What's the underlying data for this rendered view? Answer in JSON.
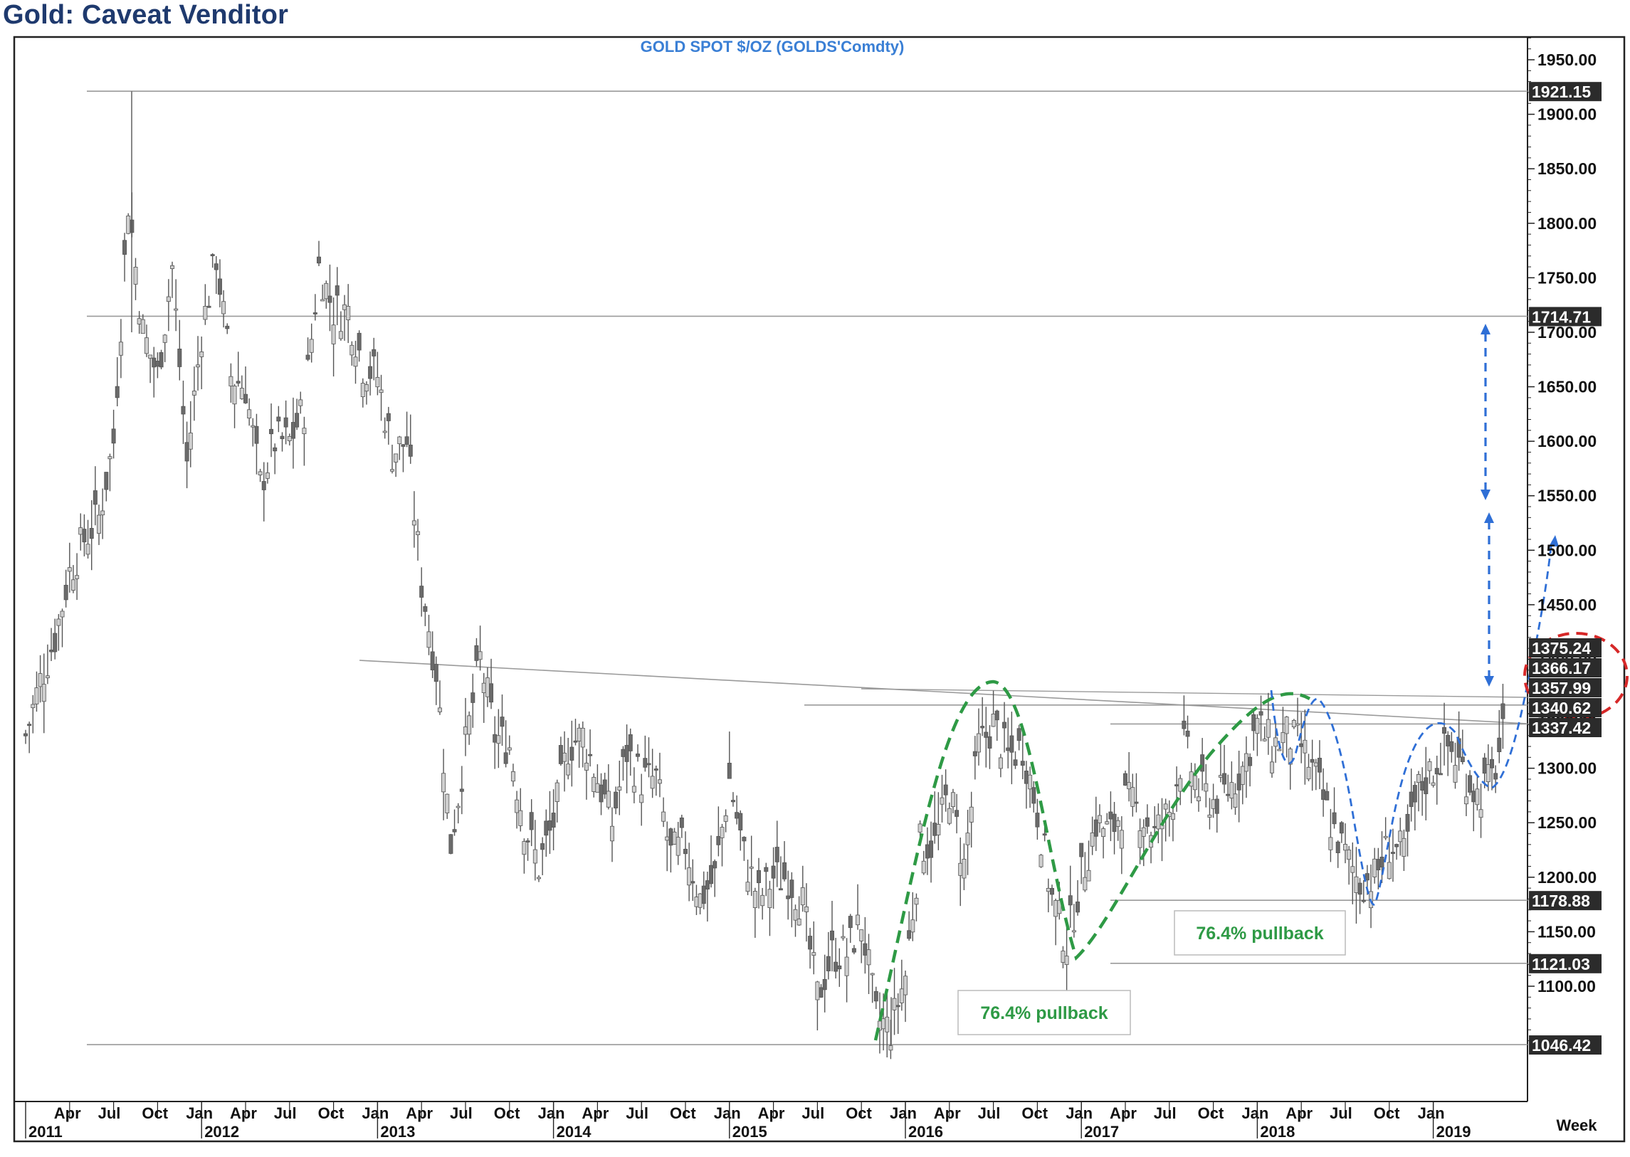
{
  "page": {
    "title": "Gold: Caveat Venditor"
  },
  "colors": {
    "title": "#1f3a6e",
    "chart_title": "#3a7fd5",
    "candles": "#555555",
    "green_wave": "#2e9a45",
    "blue_wave": "#2f6fd6",
    "red_circle": "#d62828",
    "label_box": "#2b2b2b",
    "axis_line": "#222222",
    "level_line": "#9a9a9a"
  },
  "chart_data": {
    "type": "candlestick",
    "title": "GOLD  SPOT  $/OZ  (GOLDS'Comdty)",
    "interval_label": "Week",
    "ylim": [
      1020,
      1980
    ],
    "y_ticks": [
      1100,
      1150,
      1200,
      1250,
      1300,
      1350,
      1400,
      1450,
      1500,
      1550,
      1600,
      1650,
      1700,
      1750,
      1800,
      1850,
      1900,
      1950
    ],
    "y_tick_labels": [
      "1100.00",
      "1150.00",
      "1200.00",
      "1250.00",
      "1300.00",
      "1350.00",
      "1400.00",
      "1450.00",
      "1500.00",
      "1550.00",
      "1600.00",
      "1650.00",
      "1700.00",
      "1750.00",
      "1800.00",
      "1850.00",
      "1900.00",
      "1950.00"
    ],
    "level_labels": [
      "1921.15",
      "1714.71",
      "1375.24",
      "1366.17",
      "1357.99",
      "1340.62",
      "1337.42",
      "1178.88",
      "1121.03",
      "1046.42"
    ],
    "x_month_labels": [
      "Apr",
      "Jul",
      "Oct",
      "Jan",
      "Apr",
      "Jul",
      "Oct",
      "Jan",
      "Apr",
      "Jul",
      "Oct",
      "Jan",
      "Apr",
      "Jul",
      "Oct",
      "Jan",
      "Apr",
      "Jul",
      "Oct",
      "Jan",
      "Apr",
      "Jul",
      "Oct",
      "Jan",
      "Apr",
      "Jul",
      "Oct",
      "Jan",
      "Apr",
      "Jul",
      "Oct",
      "Jan"
    ],
    "x_year_labels": [
      "2011",
      "2012",
      "2013",
      "2014",
      "2015",
      "2016",
      "2017",
      "2018",
      "2019"
    ],
    "x_range": [
      "2011-01",
      "2019-06"
    ],
    "horizontal_levels": [
      1921.15,
      1714.71,
      1357.99,
      1340.62,
      1178.88,
      1121.03,
      1046.42
    ],
    "trendline": {
      "from": [
        "2012-12",
        1380
      ],
      "to": [
        "2019-05",
        1337.42
      ]
    },
    "annotations": [
      {
        "text": "76.4% pullback",
        "anchor": [
          "2016-03",
          1070
        ]
      },
      {
        "text": "76.4% pullback",
        "anchor": [
          "2017-07",
          1155
        ]
      }
    ],
    "price_path": [
      [
        "2011-01",
        1330
      ],
      [
        "2011-02",
        1380
      ],
      [
        "2011-03",
        1420
      ],
      [
        "2011-04",
        1480
      ],
      [
        "2011-05",
        1510
      ],
      [
        "2011-06",
        1530
      ],
      [
        "2011-07",
        1600
      ],
      [
        "2011-08",
        1820
      ],
      [
        "2011-09",
        1700
      ],
      [
        "2011-10",
        1660
      ],
      [
        "2011-11",
        1760
      ],
      [
        "2011-12",
        1580
      ],
      [
        "2012-01",
        1700
      ],
      [
        "2012-02",
        1770
      ],
      [
        "2012-03",
        1660
      ],
      [
        "2012-04",
        1650
      ],
      [
        "2012-05",
        1560
      ],
      [
        "2012-06",
        1600
      ],
      [
        "2012-07",
        1600
      ],
      [
        "2012-08",
        1630
      ],
      [
        "2012-09",
        1760
      ],
      [
        "2012-10",
        1720
      ],
      [
        "2012-11",
        1720
      ],
      [
        "2012-12",
        1670
      ],
      [
        "2013-01",
        1660
      ],
      [
        "2013-02",
        1590
      ],
      [
        "2013-03",
        1600
      ],
      [
        "2013-04",
        1470
      ],
      [
        "2013-05",
        1390
      ],
      [
        "2013-06",
        1230
      ],
      [
        "2013-07",
        1320
      ],
      [
        "2013-08",
        1400
      ],
      [
        "2013-09",
        1330
      ],
      [
        "2013-10",
        1320
      ],
      [
        "2013-11",
        1250
      ],
      [
        "2013-12",
        1210
      ],
      [
        "2014-01",
        1250
      ],
      [
        "2014-02",
        1320
      ],
      [
        "2014-03",
        1330
      ],
      [
        "2014-04",
        1290
      ],
      [
        "2014-05",
        1250
      ],
      [
        "2014-06",
        1315
      ],
      [
        "2014-07",
        1290
      ],
      [
        "2014-08",
        1290
      ],
      [
        "2014-09",
        1220
      ],
      [
        "2014-10",
        1230
      ],
      [
        "2014-11",
        1180
      ],
      [
        "2014-12",
        1200
      ],
      [
        "2015-01",
        1290
      ],
      [
        "2015-02",
        1220
      ],
      [
        "2015-03",
        1180
      ],
      [
        "2015-04",
        1200
      ],
      [
        "2015-05",
        1200
      ],
      [
        "2015-06",
        1175
      ],
      [
        "2015-07",
        1090
      ],
      [
        "2015-08",
        1130
      ],
      [
        "2015-09",
        1130
      ],
      [
        "2015-10",
        1160
      ],
      [
        "2015-11",
        1070
      ],
      [
        "2015-12",
        1060
      ],
      [
        "2016-01",
        1110
      ],
      [
        "2016-02",
        1230
      ],
      [
        "2016-03",
        1230
      ],
      [
        "2016-04",
        1280
      ],
      [
        "2016-05",
        1210
      ],
      [
        "2016-06",
        1320
      ],
      [
        "2016-07",
        1340
      ],
      [
        "2016-08",
        1310
      ],
      [
        "2016-09",
        1320
      ],
      [
        "2016-10",
        1260
      ],
      [
        "2016-11",
        1180
      ],
      [
        "2016-12",
        1140
      ],
      [
        "2017-01",
        1200
      ],
      [
        "2017-02",
        1250
      ],
      [
        "2017-03",
        1240
      ],
      [
        "2017-04",
        1270
      ],
      [
        "2017-05",
        1260
      ],
      [
        "2017-06",
        1240
      ],
      [
        "2017-07",
        1260
      ],
      [
        "2017-08",
        1320
      ],
      [
        "2017-09",
        1280
      ],
      [
        "2017-10",
        1270
      ],
      [
        "2017-11",
        1280
      ],
      [
        "2017-12",
        1300
      ],
      [
        "2018-01",
        1340
      ],
      [
        "2018-02",
        1320
      ],
      [
        "2018-03",
        1330
      ],
      [
        "2018-04",
        1320
      ],
      [
        "2018-05",
        1290
      ],
      [
        "2018-06",
        1250
      ],
      [
        "2018-07",
        1220
      ],
      [
        "2018-08",
        1195
      ],
      [
        "2018-09",
        1200
      ],
      [
        "2018-10",
        1230
      ],
      [
        "2018-11",
        1220
      ],
      [
        "2018-12",
        1280
      ],
      [
        "2019-01",
        1300
      ],
      [
        "2019-02",
        1320
      ],
      [
        "2019-03",
        1300
      ],
      [
        "2019-04",
        1275
      ],
      [
        "2019-05",
        1290
      ],
      [
        "2019-06",
        1340
      ]
    ]
  }
}
